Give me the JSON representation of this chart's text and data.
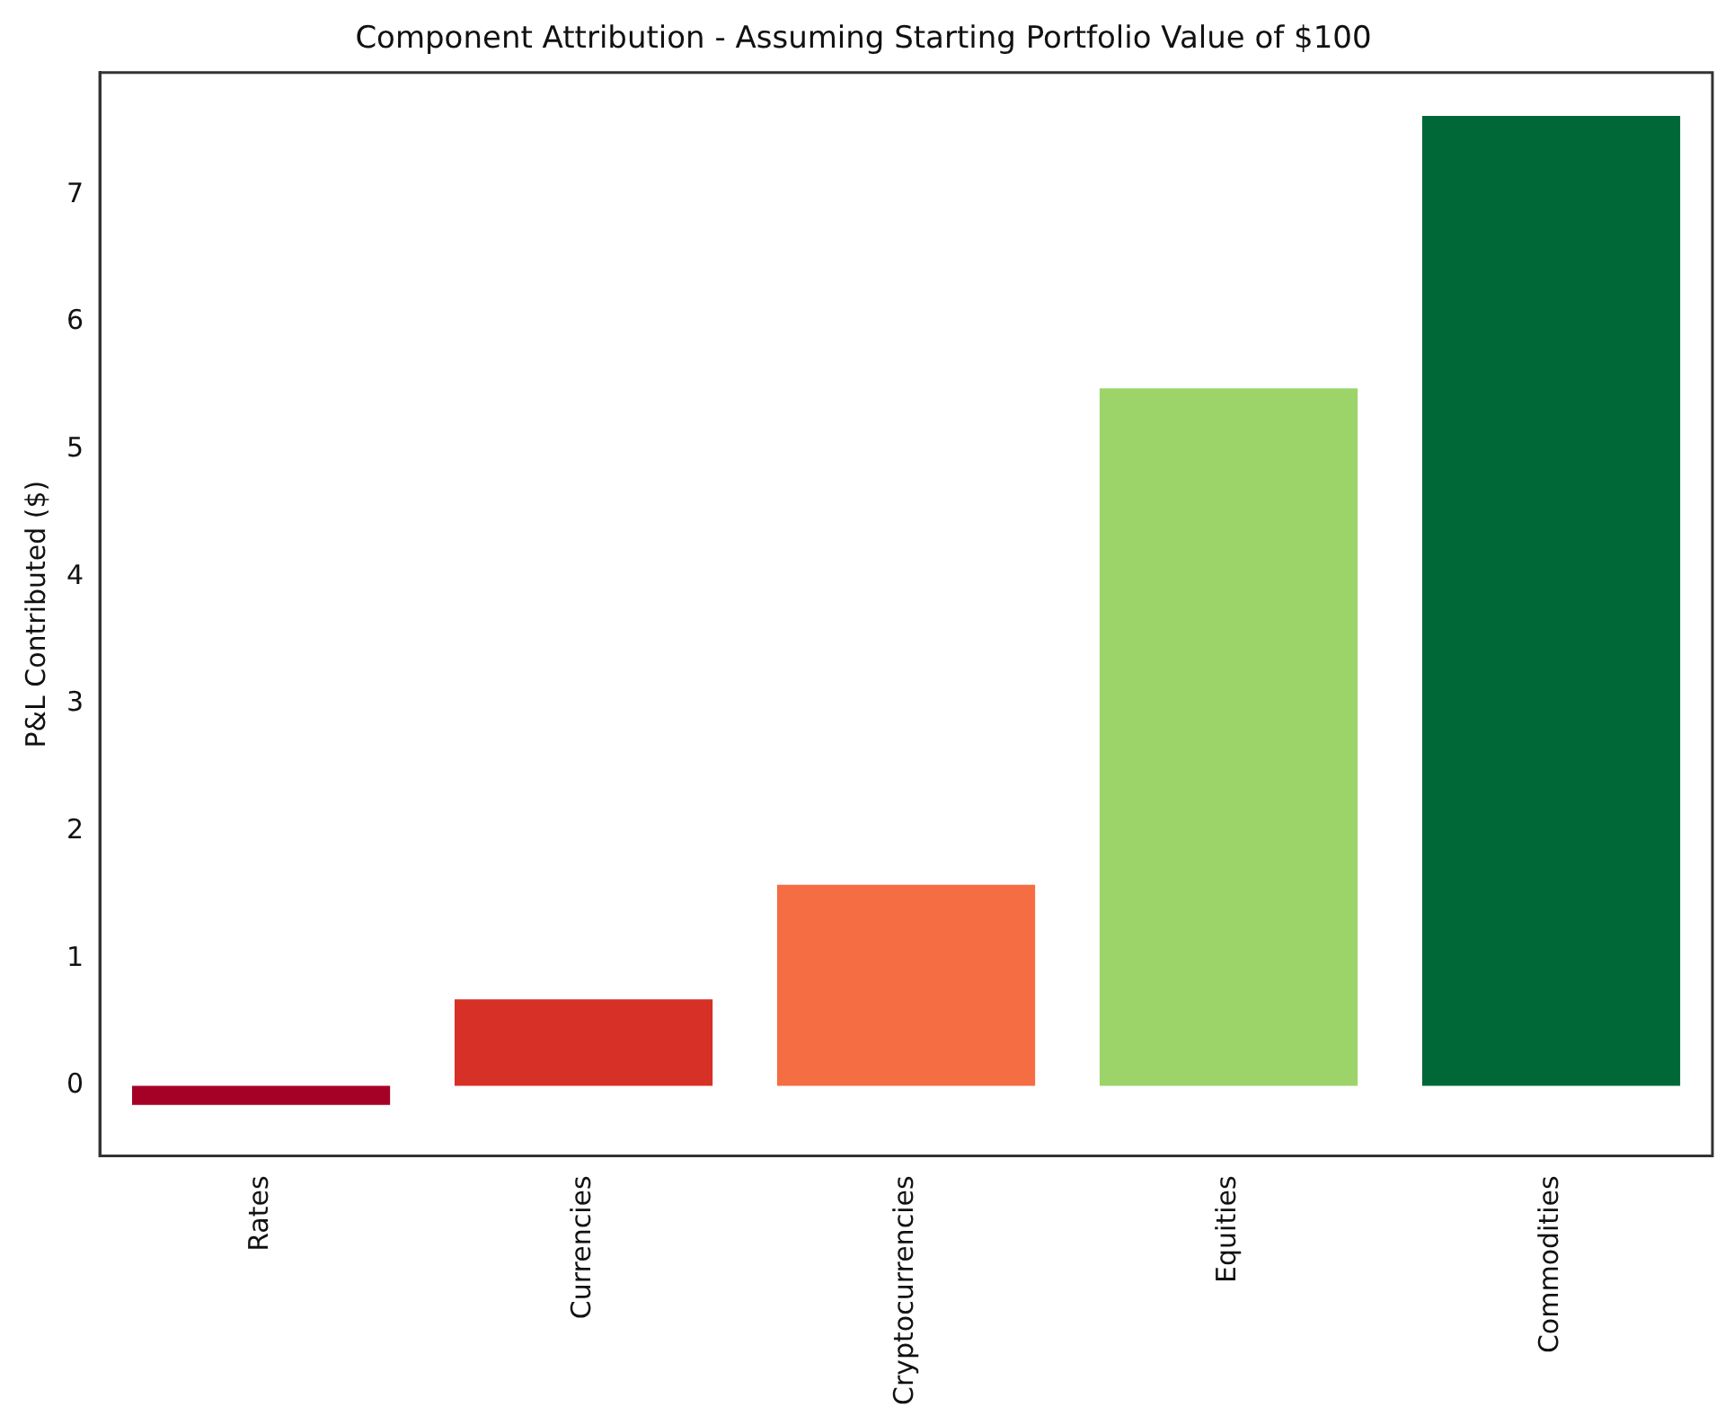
{
  "chart_data": {
    "type": "bar",
    "title": "Component Attribution - Assuming Starting Portfolio Value of $100",
    "ylabel": "P&L Contributed ($)",
    "categories": [
      "Rates",
      "Currencies",
      "Cryptocurrencies",
      "Equities",
      "Commodities"
    ],
    "values": [
      -0.15,
      0.68,
      1.58,
      5.48,
      7.62
    ],
    "colors": [
      "#a50026",
      "#d73027",
      "#f46d43",
      "#9cd46a",
      "#006837"
    ],
    "ylim": [
      -0.55,
      7.96
    ],
    "yticks": [
      0,
      1,
      2,
      3,
      4,
      5,
      6,
      7
    ],
    "grid": false,
    "legend": false
  }
}
